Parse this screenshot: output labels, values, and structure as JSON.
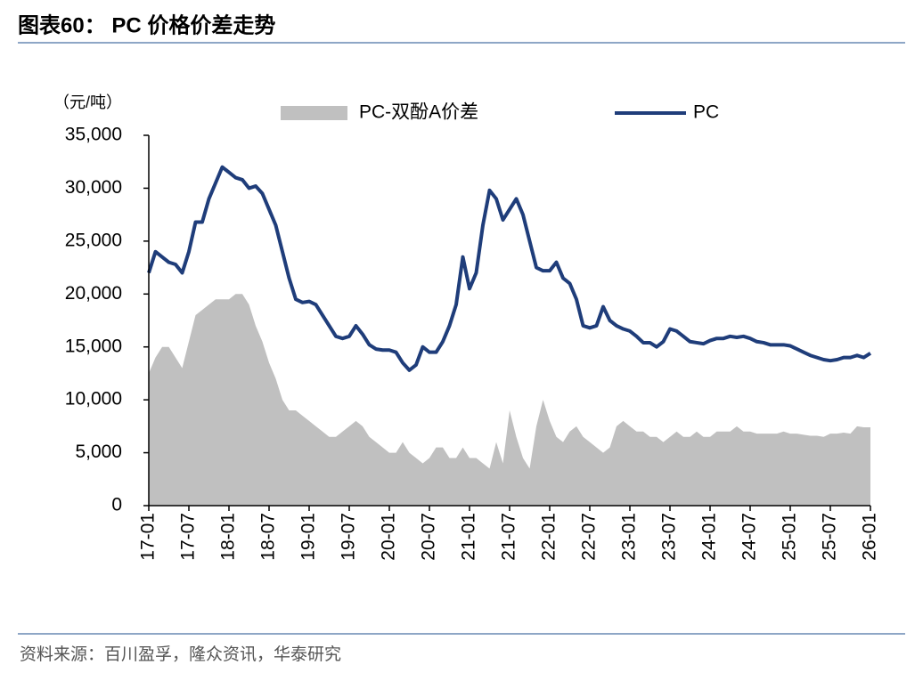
{
  "chart_data": {
    "type": "line",
    "title": "图表60：  PC 价格价差走势",
    "y_label": "（元/吨）",
    "source": "资料来源：百川盈孚，隆众资讯，华泰研究",
    "categories": [
      "17-01",
      null,
      null,
      null,
      null,
      null,
      "17-07",
      null,
      null,
      null,
      null,
      null,
      "18-01",
      null,
      null,
      null,
      null,
      null,
      "18-07",
      null,
      null,
      null,
      null,
      null,
      "19-01",
      null,
      null,
      null,
      null,
      null,
      "19-07",
      null,
      null,
      null,
      null,
      null,
      "20-01",
      null,
      null,
      null,
      null,
      null,
      "20-07",
      null,
      null,
      null,
      null,
      null,
      "21-01",
      null,
      null,
      null,
      null,
      null,
      "21-07",
      null,
      null,
      null,
      null,
      null,
      "22-01",
      null,
      null,
      null,
      null,
      null,
      "22-07",
      null,
      null,
      null,
      null,
      null,
      "23-01",
      null,
      null,
      null,
      null,
      null,
      "23-07",
      null,
      null,
      null,
      null,
      null,
      "24-01",
      null,
      null,
      null,
      null,
      null,
      "24-07",
      null,
      null,
      null,
      null,
      null,
      "25-01",
      null,
      null,
      null,
      null,
      null,
      "25-07",
      null,
      null,
      null,
      null,
      null,
      "26-01"
    ],
    "series": [
      {
        "name": "PC-双酚A价差",
        "type": "area",
        "color": "#c0c0c0",
        "values": [
          12500,
          14000,
          15000,
          15000,
          14000,
          13000,
          15500,
          18000,
          18500,
          19000,
          19500,
          19500,
          19500,
          20000,
          20000,
          19000,
          17000,
          15500,
          13500,
          12000,
          10000,
          9000,
          9000,
          8500,
          8000,
          7500,
          7000,
          6500,
          6500,
          7000,
          7500,
          8000,
          7500,
          6500,
          6000,
          5500,
          5000,
          5000,
          6000,
          5000,
          4500,
          4000,
          4500,
          5500,
          5500,
          4500,
          4500,
          5500,
          4500,
          4500,
          4000,
          3500,
          6000,
          4000,
          9000,
          6500,
          4500,
          3500,
          7500,
          10000,
          8000,
          6500,
          6000,
          7000,
          7500,
          6500,
          6000,
          5500,
          5000,
          5500,
          7500,
          8000,
          7500,
          7000,
          7000,
          6500,
          6500,
          6000,
          6500,
          7000,
          6500,
          6500,
          7000,
          6500,
          6500,
          7000,
          7000,
          7000,
          7500,
          7000,
          7000,
          6800,
          6800,
          6800,
          6800,
          7000,
          6800,
          6800,
          6700,
          6600,
          6600,
          6500,
          6800,
          6800,
          6900,
          6800,
          7500,
          7400,
          7400
        ]
      },
      {
        "name": "PC",
        "type": "line",
        "color": "#1f3d7a",
        "values": [
          22000,
          24000,
          23500,
          23000,
          22800,
          22000,
          24000,
          26800,
          26800,
          29000,
          30500,
          32000,
          31500,
          31000,
          30800,
          30000,
          30200,
          29500,
          28000,
          26500,
          24000,
          21500,
          19500,
          19200,
          19300,
          19000,
          18000,
          17000,
          16000,
          15800,
          16000,
          17000,
          16200,
          15200,
          14800,
          14700,
          14700,
          14500,
          13500,
          12800,
          13300,
          15000,
          14500,
          14500,
          15500,
          17000,
          19000,
          23500,
          20500,
          22000,
          26500,
          29800,
          29000,
          27000,
          28000,
          29000,
          27500,
          25000,
          22500,
          22200,
          22200,
          23000,
          21500,
          21000,
          19500,
          17000,
          16800,
          17000,
          18800,
          17500,
          17000,
          16700,
          16500,
          16000,
          15400,
          15400,
          15000,
          15500,
          16700,
          16500,
          16000,
          15500,
          15400,
          15300,
          15600,
          15800,
          15800,
          16000,
          15900,
          16000,
          15800,
          15500,
          15400,
          15200,
          15200,
          15200,
          15100,
          14800,
          14500,
          14200,
          14000,
          13800,
          13700,
          13800,
          14000,
          14000,
          14200,
          14000,
          14400
        ]
      }
    ],
    "ylim": [
      0,
      35000
    ],
    "yticks": [
      0,
      {
        "value": 5000,
        "label": "5,000"
      },
      {
        "value": 10000,
        "label": "10,000"
      },
      {
        "value": 15000,
        "label": "15,000"
      },
      {
        "value": 20000,
        "label": "20,000"
      },
      {
        "value": 25000,
        "label": "25,000"
      },
      {
        "value": 30000,
        "label": "30,000"
      },
      {
        "value": 35000,
        "label": "35,000"
      }
    ],
    "grid": false
  }
}
